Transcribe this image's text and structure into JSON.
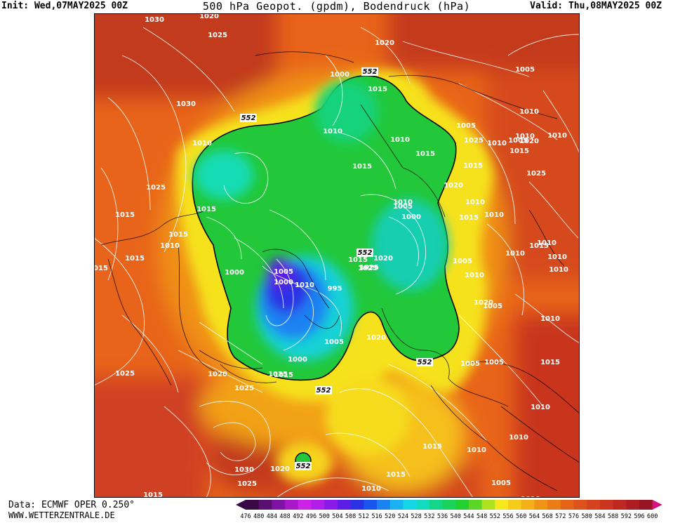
{
  "header": {
    "init": "Init: Wed,07MAY2025 00Z",
    "title": "500 hPa Geopot. (gpdm), Bodendruck (hPa)",
    "valid": "Valid: Thu,08MAY2025 00Z"
  },
  "footer": {
    "data_source": "Data: ECMWF OPER 0.250°",
    "website": "WWW.WETTERZENTRALE.DE"
  },
  "colorbar": {
    "values": [
      "476",
      "480",
      "484",
      "488",
      "492",
      "496",
      "500",
      "504",
      "508",
      "512",
      "516",
      "520",
      "524",
      "528",
      "532",
      "536",
      "540",
      "544",
      "548",
      "552",
      "556",
      "560",
      "564",
      "568",
      "572",
      "576",
      "580",
      "584",
      "588",
      "592",
      "596",
      "600"
    ],
    "colors": [
      "#3a0a46",
      "#5a0f72",
      "#7f12a2",
      "#a918c8",
      "#cc22e6",
      "#b01ee8",
      "#8a1aea",
      "#5c1ee6",
      "#2a32e4",
      "#1856ee",
      "#1a82f2",
      "#1ab2f2",
      "#14d6e6",
      "#12dcc0",
      "#14d68a",
      "#18d45a",
      "#22d030",
      "#5cd626",
      "#aee21e",
      "#f6e81c",
      "#f6cc1a",
      "#f4b018",
      "#f09416",
      "#ec7c16",
      "#e66418",
      "#de521c",
      "#d6421e",
      "#cc3420",
      "#be2820",
      "#ac1e22",
      "#961424",
      "#d4147a"
    ]
  },
  "map": {
    "geo_label": "552",
    "isobar_labels": [
      "1020",
      "1025",
      "1030",
      "1025",
      "1015",
      "1015",
      "1015",
      "1010",
      "1015",
      "1030",
      "1025",
      "1015",
      "1020",
      "1025",
      "1030",
      "1025",
      "1015",
      "1020",
      "1010",
      "1000",
      "1015",
      "1010",
      "1010",
      "1015",
      "1015",
      "1005",
      "1010",
      "1010",
      "1015",
      "1005",
      "1010",
      "1020",
      "1025",
      "1010",
      "1000",
      "1005",
      "1000",
      "1010",
      "995",
      "1025",
      "1005",
      "1010",
      "1000",
      "1015",
      "1020",
      "1025",
      "1020",
      "1005",
      "1000",
      "1015",
      "1025",
      "1020",
      "1015",
      "1010",
      "1005",
      "1010",
      "1005",
      "1010",
      "1015",
      "1010",
      "1020",
      "1025",
      "1010",
      "1015",
      "1015",
      "1010",
      "1005",
      "1010",
      "1020",
      "1005",
      "1010",
      "1015",
      "1005",
      "1010",
      "1010",
      "1010",
      "1010",
      "1010",
      "1015",
      "1005"
    ]
  }
}
